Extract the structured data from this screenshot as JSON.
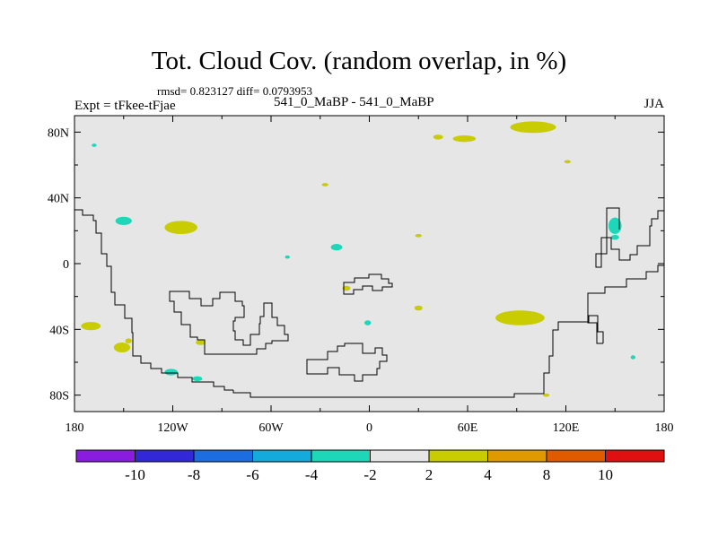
{
  "title": "Tot. Cloud Cov. (random overlap, in %)",
  "stats": "rmsd= 0.823127 diff= 0.0793953",
  "experiment": "Expt = tFkee-tFjae",
  "runs": "541_0_MaBP - 541_0_MaBP",
  "season": "JJA",
  "chart_data": {
    "type": "heatmap",
    "title": "Tot. Cloud Cov. (random overlap, in %)",
    "projection": "cylindrical equidistant",
    "x_axis": {
      "range": [
        -180,
        180
      ],
      "ticks": [
        -180,
        -120,
        -60,
        0,
        60,
        120,
        180
      ],
      "tick_labels": [
        "180",
        "120W",
        "60W",
        "0",
        "60E",
        "120E",
        "180"
      ]
    },
    "y_axis": {
      "range": [
        -90,
        90
      ],
      "ticks": [
        80,
        40,
        0,
        -40,
        -80
      ],
      "tick_labels": [
        "80N",
        "40N",
        "0",
        "40S",
        "80S"
      ]
    },
    "colorbar": {
      "levels": [
        -10,
        -8,
        -6,
        -4,
        -2,
        2,
        4,
        8,
        10
      ],
      "labels": [
        "-10",
        "-8",
        "-6",
        "-4",
        "-2",
        "2",
        "4",
        "8",
        "10"
      ],
      "colors": [
        "#8a1ce0",
        "#3228d8",
        "#1c6ee0",
        "#14aadc",
        "#1ed6b8",
        "#e6e6e6",
        "#c8cc00",
        "#e09a00",
        "#e05a00",
        "#e01010"
      ]
    },
    "background_color": "#e6e6e6",
    "regions": [
      {
        "lon": 100,
        "lat": 83,
        "rx": 14,
        "ry": 3.5,
        "class": "2 to 4"
      },
      {
        "lon": 58,
        "lat": 76,
        "rx": 7,
        "ry": 2,
        "class": "2 to 4"
      },
      {
        "lon": 42,
        "lat": 77,
        "rx": 3,
        "ry": 1.5,
        "class": "2 to 4"
      },
      {
        "lon": -115,
        "lat": 22,
        "rx": 10,
        "ry": 4,
        "class": "2 to 4"
      },
      {
        "lon": 92,
        "lat": -33,
        "rx": 15,
        "ry": 4.5,
        "class": "2 to 4"
      },
      {
        "lon": -170,
        "lat": -38,
        "rx": 6,
        "ry": 2.5,
        "class": "2 to 4"
      },
      {
        "lon": -151,
        "lat": -51,
        "rx": 5,
        "ry": 3,
        "class": "2 to 4"
      },
      {
        "lon": -147,
        "lat": -47,
        "rx": 2,
        "ry": 1.5,
        "class": "2 to 4"
      },
      {
        "lon": -27,
        "lat": 48,
        "rx": 2,
        "ry": 1,
        "class": "2 to 4"
      },
      {
        "lon": 121,
        "lat": 62,
        "rx": 2,
        "ry": 1,
        "class": "2 to 4"
      },
      {
        "lon": 30,
        "lat": 17,
        "rx": 2,
        "ry": 1,
        "class": "2 to 4"
      },
      {
        "lon": -14,
        "lat": -15,
        "rx": 2.5,
        "ry": 1.5,
        "class": "2 to 4"
      },
      {
        "lon": -103,
        "lat": -48,
        "rx": 3,
        "ry": 1.5,
        "class": "2 to 4"
      },
      {
        "lon": 30,
        "lat": -27,
        "rx": 2.5,
        "ry": 1.5,
        "class": "2 to 4"
      },
      {
        "lon": 108,
        "lat": -80,
        "rx": 2,
        "ry": 1,
        "class": "2 to 4"
      },
      {
        "lon": -150,
        "lat": 26,
        "rx": 5,
        "ry": 2.5,
        "class": "-4 to -2"
      },
      {
        "lon": -20,
        "lat": 10,
        "rx": 3.5,
        "ry": 2,
        "class": "-4 to -2"
      },
      {
        "lon": -1,
        "lat": -36,
        "rx": 2,
        "ry": 1.5,
        "class": "-4 to -2"
      },
      {
        "lon": 150,
        "lat": 23,
        "rx": 4,
        "ry": 5,
        "class": "-4 to -2"
      },
      {
        "lon": 150,
        "lat": 16,
        "rx": 2.5,
        "ry": 1.5,
        "class": "-4 to -2"
      },
      {
        "lon": -121,
        "lat": -66,
        "rx": 4,
        "ry": 2,
        "class": "-4 to -2"
      },
      {
        "lon": -105,
        "lat": -70,
        "rx": 3,
        "ry": 1.5,
        "class": "-4 to -2"
      },
      {
        "lon": -168,
        "lat": 72,
        "rx": 1.5,
        "ry": 1,
        "class": "-4 to -2"
      },
      {
        "lon": 161,
        "lat": -57,
        "rx": 1.5,
        "ry": 1.2,
        "class": "-4 to -2"
      },
      {
        "lon": -50,
        "lat": 4,
        "rx": 1.5,
        "ry": 1,
        "class": "-4 to -2"
      }
    ]
  }
}
